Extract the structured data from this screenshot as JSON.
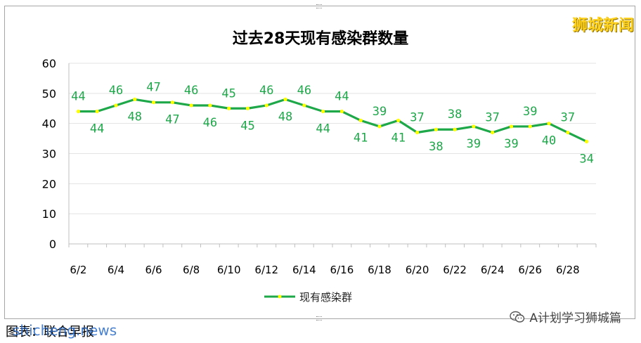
{
  "watermark_top": "狮城新闻",
  "footer": {
    "caption": "图表：联合早报",
    "site": "shicheng.news",
    "brand": "A计划学习狮城篇"
  },
  "icons": {
    "brand": "wechat-icon"
  },
  "colors": {
    "line": "#1ea84a",
    "marker": "#ffff00",
    "label": "#1ea84a"
  },
  "chart_data": {
    "type": "line",
    "title": "过去28天现有感染群数量",
    "ylim": [
      0,
      60
    ],
    "yticks": [
      0,
      10,
      20,
      30,
      40,
      50,
      60
    ],
    "x": [
      "6/2",
      "6/3",
      "6/4",
      "6/5",
      "6/6",
      "6/7",
      "6/8",
      "6/9",
      "6/10",
      "6/11",
      "6/12",
      "6/13",
      "6/14",
      "6/15",
      "6/16",
      "6/17",
      "6/18",
      "6/19",
      "6/20",
      "6/21",
      "6/22",
      "6/23",
      "6/24",
      "6/25",
      "6/26",
      "6/27",
      "6/28",
      "6/29"
    ],
    "xtick_labels": [
      "6/2",
      "6/4",
      "6/6",
      "6/8",
      "6/10",
      "6/12",
      "6/14",
      "6/16",
      "6/18",
      "6/20",
      "6/22",
      "6/24",
      "6/26",
      "6/28"
    ],
    "grid": true,
    "legend_position": "bottom",
    "series": [
      {
        "name": "现有感染群",
        "values": [
          44,
          44,
          46,
          48,
          47,
          47,
          46,
          46,
          45,
          45,
          46,
          48,
          46,
          44,
          44,
          41,
          39,
          41,
          37,
          38,
          38,
          39,
          37,
          39,
          39,
          40,
          37,
          34
        ]
      }
    ]
  }
}
